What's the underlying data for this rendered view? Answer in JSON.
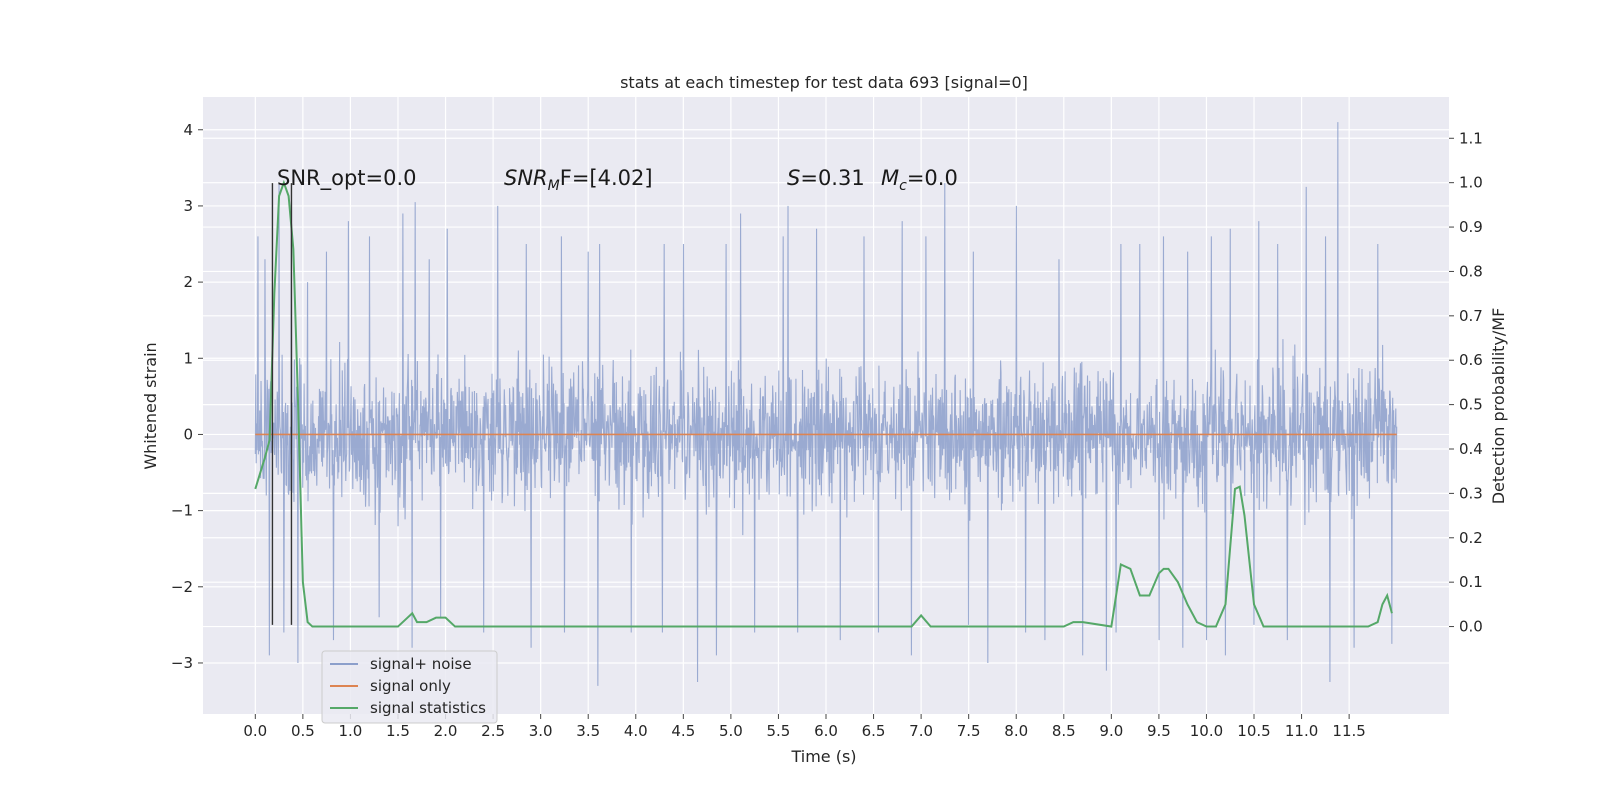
{
  "chart_data": {
    "type": "line",
    "title": "stats at each timestep for test data 693 [signal=0]",
    "xlabel": "Time (s)",
    "ylabel": "Whitened strain",
    "ylabel_right": "Detection probability/MF",
    "xlim": [
      -0.55,
      12.55
    ],
    "ylim": [
      -3.67,
      4.43
    ],
    "ylim_right": [
      -0.197,
      1.193
    ],
    "x_ticks": [
      0.0,
      0.5,
      1.0,
      1.5,
      2.0,
      2.5,
      3.0,
      3.5,
      4.0,
      4.5,
      5.0,
      5.5,
      6.0,
      6.5,
      7.0,
      7.5,
      8.0,
      8.5,
      9.0,
      9.5,
      10.0,
      10.5,
      11.0,
      11.5
    ],
    "x_tick_labels": [
      "0.0",
      "0.5",
      "1.0",
      "1.5",
      "2.0",
      "2.5",
      "3.0",
      "3.5",
      "4.0",
      "4.5",
      "5.0",
      "5.5",
      "6.0",
      "6.5",
      "7.0",
      "7.5",
      "8.0",
      "8.5",
      "9.0",
      "9.5",
      "10.0",
      "10.5",
      "11.0",
      "11.5"
    ],
    "y_ticks": [
      -3,
      -2,
      -1,
      0,
      1,
      2,
      3,
      4
    ],
    "y_tick_labels": [
      "−3",
      "−2",
      "−1",
      "0",
      "1",
      "2",
      "3",
      "4"
    ],
    "y_ticks_right": [
      0.0,
      0.1,
      0.2,
      0.3,
      0.4,
      0.5,
      0.6,
      0.7,
      0.8,
      0.9,
      1.0,
      1.1
    ],
    "y_tick_labels_right": [
      "0.0",
      "0.1",
      "0.2",
      "0.3",
      "0.4",
      "0.5",
      "0.6",
      "0.7",
      "0.8",
      "0.9",
      "1.0",
      "1.1"
    ],
    "grid": true,
    "legend_position": "lower-left",
    "annotations": {
      "snr_opt": "SNR_opt=0.0",
      "snr_mf_main": "SNR",
      "snr_mf_sub": "M",
      "snr_mf_rest": "F=[4.02]",
      "s_label": "S",
      "s_value": "=0.31",
      "mc_main": "M",
      "mc_sub": "c",
      "mc_value": "=0.0"
    },
    "series": [
      {
        "name": "signal+ noise",
        "color": "#8c9fcb",
        "axis": "left",
        "note": "dense whitened noise trace from 0.0 s to 12.0 s; typical spread about ±1.6 with peaks (values at sampled times)",
        "peaks_x": [
          0.03,
          0.1,
          0.25,
          0.38,
          0.55,
          0.75,
          0.98,
          1.2,
          1.55,
          1.68,
          1.83,
          2.02,
          2.55,
          2.85,
          3.22,
          3.5,
          3.62,
          3.95,
          4.3,
          4.5,
          4.95,
          5.1,
          5.55,
          5.6,
          5.9,
          6.15,
          6.4,
          6.55,
          6.8,
          7.05,
          7.25,
          7.55,
          8.0,
          8.45,
          8.7,
          8.95,
          9.1,
          9.3,
          9.55,
          9.8,
          10.05,
          10.25,
          10.55,
          10.75,
          11.05,
          11.25,
          11.38,
          11.55,
          11.8,
          11.95
        ],
        "peaks_y": [
          2.6,
          2.3,
          3.3,
          2.7,
          2.0,
          2.4,
          2.8,
          2.6,
          2.9,
          3.05,
          2.3,
          2.7,
          3.0,
          2.5,
          2.6,
          2.4,
          2.5,
          2.5,
          2.5,
          2.5,
          2.5,
          2.9,
          2.6,
          3.0,
          2.7,
          2.5,
          2.6,
          2.7,
          2.8,
          2.6,
          3.3,
          2.4,
          3.0,
          2.3,
          2.4,
          2.2,
          2.5,
          2.5,
          2.6,
          2.4,
          2.6,
          2.7,
          2.8,
          2.5,
          3.25,
          2.6,
          4.1,
          2.5,
          2.5,
          2.4
        ],
        "troughs_x": [
          0.15,
          0.3,
          0.45,
          0.82,
          1.3,
          1.65,
          1.95,
          2.4,
          2.9,
          3.25,
          3.6,
          3.95,
          4.28,
          4.65,
          4.85,
          5.25,
          5.7,
          6.15,
          6.55,
          6.9,
          7.5,
          7.7,
          8.1,
          8.3,
          8.7,
          8.95,
          9.05,
          9.5,
          9.75,
          10.0,
          10.2,
          10.5,
          10.85,
          11.3,
          11.55,
          11.95
        ],
        "troughs_y": [
          -2.9,
          -2.6,
          -3.0,
          -2.7,
          -2.4,
          -2.8,
          -2.4,
          -2.6,
          -2.8,
          -2.6,
          -3.3,
          -2.6,
          -2.6,
          -3.25,
          -2.9,
          -2.6,
          -2.6,
          -2.7,
          -2.6,
          -2.9,
          -2.5,
          -3.0,
          -2.6,
          -2.7,
          -2.9,
          -3.1,
          -2.6,
          -2.7,
          -2.8,
          -2.7,
          -2.9,
          -2.5,
          -2.7,
          -3.25,
          -2.8,
          -2.75
        ]
      },
      {
        "name": "signal only",
        "color": "#dd8452",
        "axis": "left",
        "x": [
          0.0,
          12.0
        ],
        "y": [
          0.0,
          0.0
        ]
      },
      {
        "name": "signal statistics",
        "color": "#55a868",
        "axis": "right",
        "x": [
          0.0,
          0.1,
          0.15,
          0.2,
          0.25,
          0.3,
          0.35,
          0.4,
          0.45,
          0.5,
          0.55,
          0.6,
          1.0,
          1.5,
          1.6,
          1.65,
          1.7,
          1.8,
          1.9,
          2.0,
          2.1,
          2.5,
          3.0,
          4.0,
          5.0,
          6.0,
          6.9,
          7.0,
          7.1,
          8.0,
          8.5,
          8.6,
          8.7,
          9.0,
          9.05,
          9.1,
          9.2,
          9.3,
          9.4,
          9.5,
          9.55,
          9.6,
          9.7,
          9.8,
          9.9,
          10.0,
          10.1,
          10.2,
          10.3,
          10.35,
          10.4,
          10.5,
          10.6,
          10.7,
          11.0,
          11.5,
          11.7,
          11.8,
          11.85,
          11.9,
          11.95
        ],
        "y": [
          0.31,
          0.38,
          0.42,
          0.75,
          0.97,
          1.0,
          0.97,
          0.85,
          0.5,
          0.1,
          0.01,
          0.0,
          0.0,
          0.0,
          0.02,
          0.03,
          0.01,
          0.01,
          0.02,
          0.02,
          0.0,
          0.0,
          0.0,
          0.0,
          0.0,
          0.0,
          0.0,
          0.025,
          0.0,
          0.0,
          0.0,
          0.01,
          0.01,
          0.0,
          0.07,
          0.14,
          0.13,
          0.07,
          0.07,
          0.12,
          0.13,
          0.13,
          0.1,
          0.05,
          0.01,
          0.0,
          0.0,
          0.05,
          0.31,
          0.315,
          0.25,
          0.05,
          0.0,
          0.0,
          0.0,
          0.0,
          0.0,
          0.01,
          0.05,
          0.07,
          0.03
        ]
      }
    ],
    "vertical_markers": {
      "color": "#333333",
      "x": [
        0.18,
        0.38
      ],
      "y_top": [
        3.3,
        3.3
      ],
      "y_bottom": [
        -2.5,
        -2.5
      ]
    }
  }
}
